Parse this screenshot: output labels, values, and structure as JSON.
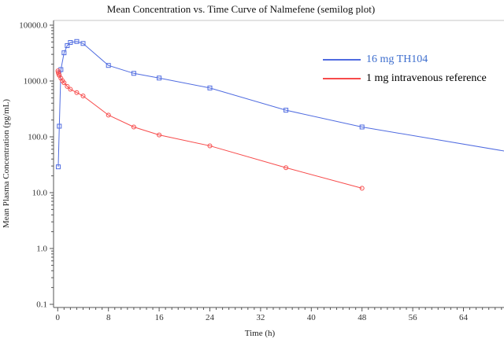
{
  "chart_data": {
    "type": "line",
    "title": "Mean Concentration vs. Time Curve of Nalmefene (semilog plot)",
    "xlabel": "Time (h)",
    "ylabel": "Mean Plasma Concentration (pg/mL)",
    "x_axis": {
      "major_ticks": [
        0,
        8,
        16,
        24,
        32,
        40,
        48,
        56,
        64
      ],
      "minor_tick_step_hours": 1,
      "visible_max_hours": 70.4
    },
    "y_axis": {
      "scale": "log",
      "tick_labels": [
        "10000.0",
        "1000.0",
        "100.0",
        "10.0",
        "1.0",
        "0.1"
      ],
      "tick_values": [
        10000,
        1000,
        100,
        10,
        1,
        0.1
      ],
      "range": [
        0.1,
        10000
      ]
    },
    "grid": "off",
    "legend_position": "inside-top-right",
    "series": [
      {
        "name": "16 mg TH104",
        "color": "#4f6be0",
        "label_color": "#3f6fce",
        "marker": "square",
        "x": [
          0.083,
          0.25,
          0.5,
          1,
          1.5,
          2,
          3,
          4,
          8,
          12,
          16,
          24,
          36,
          48,
          72
        ],
        "y": [
          29,
          155,
          1600,
          3200,
          4300,
          4900,
          5100,
          4700,
          1900,
          1370,
          1130,
          750,
          300,
          150,
          52
        ]
      },
      {
        "name": "1 mg intravenous reference",
        "color": "#f74b4b",
        "label_color": "#000000",
        "marker": "circle",
        "x": [
          0.033,
          0.083,
          0.167,
          0.25,
          0.5,
          0.75,
          1,
          1.5,
          2,
          3,
          4,
          8,
          12,
          16,
          24,
          36,
          48
        ],
        "y": [
          1520,
          1420,
          1330,
          1260,
          1120,
          1010,
          930,
          800,
          710,
          620,
          540,
          245,
          150,
          108,
          69,
          28,
          12
        ]
      }
    ]
  }
}
